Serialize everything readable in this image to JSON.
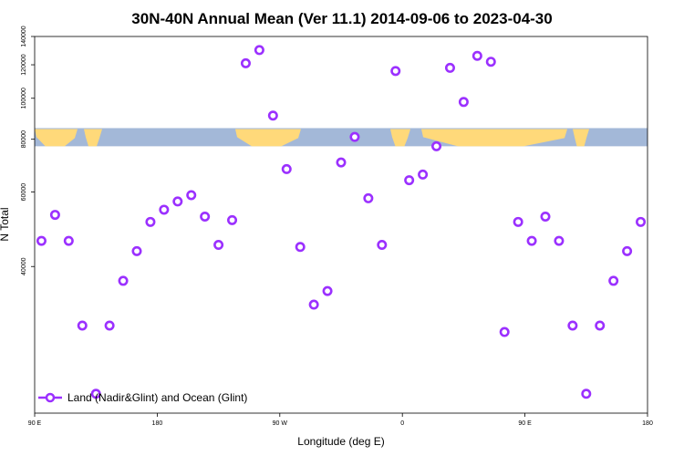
{
  "chart_data": {
    "type": "scatter",
    "title": "30N-40N Annual Mean (Ver 11.1)   2014-09-06 to 2023-04-30",
    "xlabel": "Longitude (deg E)",
    "ylabel": "N Total",
    "x_ticks": [
      {
        "value": 90,
        "label": "90 E"
      },
      {
        "value": 180,
        "label": "180"
      },
      {
        "value": 270,
        "label": "90 W"
      },
      {
        "value": 360,
        "label": "0"
      },
      {
        "value": 450,
        "label": "90 E"
      },
      {
        "value": 540,
        "label": "180"
      }
    ],
    "y_ticks": [
      40000,
      60000,
      80000,
      100000,
      120000,
      140000
    ],
    "y_scale": "log",
    "xlim": [
      90,
      540
    ],
    "ylim": [
      18000,
      140000
    ],
    "grid": false,
    "legend_position": "bottom-left",
    "series": [
      {
        "name": "Land (Nadir&Glint) and Ocean (Glint)",
        "color": "#9b30ff",
        "marker": "open-circle",
        "x": [
          95,
          105,
          115,
          125,
          135,
          145,
          155,
          165,
          175,
          185,
          195,
          205,
          215,
          225,
          235,
          245,
          255,
          265,
          275,
          285,
          295,
          305,
          315,
          325,
          335,
          345,
          355,
          365,
          375,
          385,
          395,
          405,
          415,
          425,
          435,
          445,
          455,
          465,
          475,
          485,
          495,
          505,
          515,
          525,
          535
        ],
        "y": [
          46000,
          53000,
          46000,
          29000,
          20000,
          29000,
          37000,
          43500,
          51000,
          54500,
          57000,
          59000,
          52500,
          45000,
          51500,
          121000,
          130000,
          91000,
          68000,
          44500,
          32500,
          35000,
          70500,
          81000,
          58000,
          45000,
          116000,
          64000,
          66000,
          77000,
          118000,
          98000,
          126000,
          122000,
          28000,
          51000,
          46000,
          52500,
          46000,
          29000,
          20000,
          29000,
          37000,
          43500,
          51000
        ]
      }
    ]
  },
  "map_strip": {
    "ocean_color": "#a3b8d8",
    "land_color": "#ffd97a",
    "y_value_range": [
      77000,
      85000
    ]
  }
}
